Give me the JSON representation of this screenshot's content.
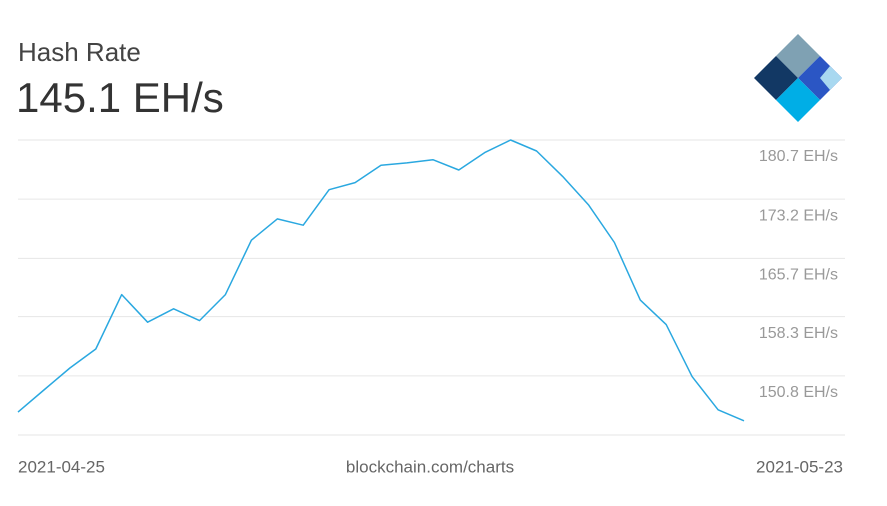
{
  "chart_data": {
    "type": "line",
    "title": "Hash Rate",
    "subtitle": "145.1 EH/s",
    "source": "blockchain.com/charts",
    "categories": [
      "2021-04-25",
      null,
      null,
      null,
      null,
      null,
      null,
      null,
      null,
      null,
      null,
      null,
      null,
      null,
      null,
      null,
      null,
      null,
      null,
      null,
      null,
      null,
      null,
      null,
      null,
      null,
      null,
      null,
      "2021-05-23"
    ],
    "series": [
      {
        "color": "#2aa8e0",
        "values": [
          146.2,
          149.0,
          151.8,
          154.2,
          161.1,
          157.6,
          159.3,
          157.8,
          161.1,
          168.0,
          170.7,
          169.9,
          174.4,
          175.3,
          177.5,
          177.8,
          178.2,
          176.9,
          179.1,
          180.7,
          179.3,
          176.1,
          172.5,
          167.7,
          160.4,
          157.3,
          150.7,
          146.5,
          145.1
        ]
      }
    ],
    "ylim": [
      143.3,
      180.7
    ],
    "yticks": [
      {
        "value": 180.7,
        "label": "180.7 EH/s"
      },
      {
        "value": 173.2,
        "label": "173.2 EH/s"
      },
      {
        "value": 165.7,
        "label": "165.7 EH/s"
      },
      {
        "value": 158.3,
        "label": "158.3 EH/s"
      },
      {
        "value": 150.8,
        "label": "150.8 EH/s"
      }
    ],
    "grid": true
  }
}
